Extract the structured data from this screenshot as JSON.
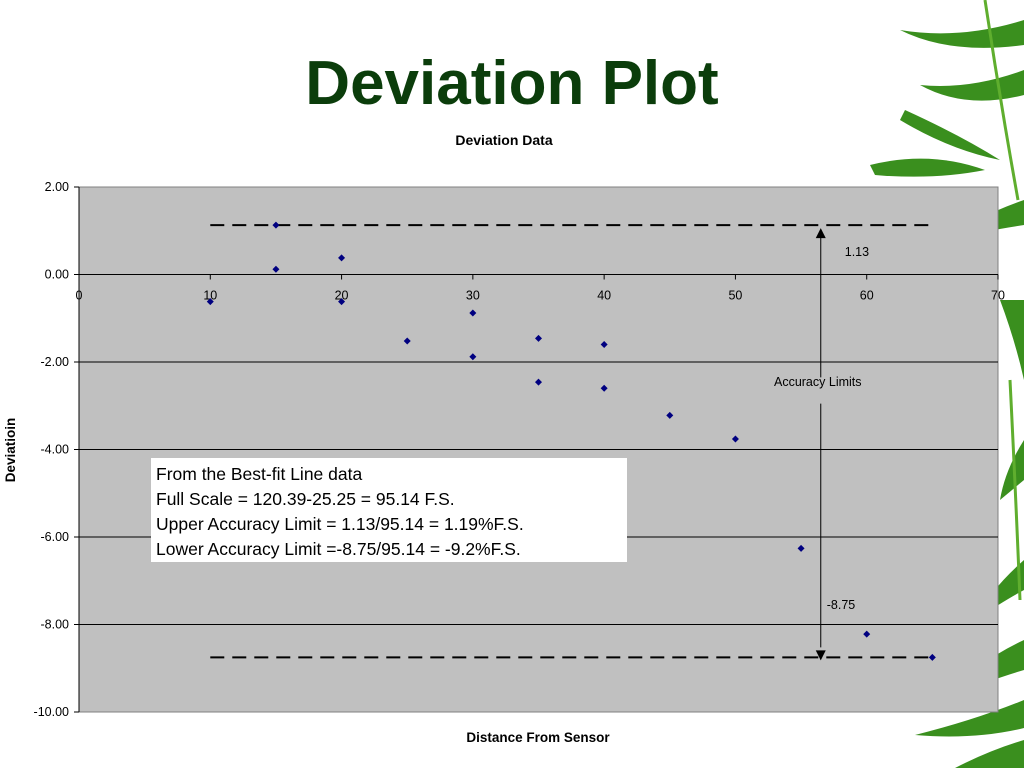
{
  "slide": {
    "title": "Deviation Plot",
    "note_lines": [
      "From the Best-fit Line data",
      "Full Scale = 120.39-25.25 = 95.14 F.S.",
      "Upper Accuracy Limit = 1.13/95.14 = 1.19%F.S.",
      "Lower Accuracy Limit =-8.75/95.14 = -9.2%F.S."
    ],
    "colors": {
      "title": "#0b3d0b",
      "plot_bg": "#c0c0c0",
      "marker": "#000080",
      "bamboo": "#3a8f1e"
    }
  },
  "chart_data": {
    "type": "scatter",
    "title": "Deviation Data",
    "xlabel": "Distance From Sensor",
    "ylabel": "Deviatioin",
    "xlim": [
      0,
      70
    ],
    "ylim": [
      -10,
      2
    ],
    "x_ticks": [
      0,
      10,
      20,
      30,
      40,
      50,
      60,
      70
    ],
    "y_ticks": [
      "2.00",
      "0.00",
      "-2.00",
      "-4.00",
      "-6.00",
      "-8.00",
      "-10.00"
    ],
    "grid": "horizontal",
    "points": [
      {
        "x": 10,
        "y": -0.62
      },
      {
        "x": 15,
        "y": 1.13
      },
      {
        "x": 15,
        "y": 0.12
      },
      {
        "x": 20,
        "y": 0.38
      },
      {
        "x": 20,
        "y": -0.62
      },
      {
        "x": 25,
        "y": -1.52
      },
      {
        "x": 30,
        "y": -0.88
      },
      {
        "x": 30,
        "y": -1.88
      },
      {
        "x": 35,
        "y": -1.46
      },
      {
        "x": 35,
        "y": -2.46
      },
      {
        "x": 40,
        "y": -1.6
      },
      {
        "x": 40,
        "y": -2.6
      },
      {
        "x": 45,
        "y": -3.22
      },
      {
        "x": 50,
        "y": -3.76
      },
      {
        "x": 55,
        "y": -6.26
      },
      {
        "x": 60,
        "y": -8.22
      },
      {
        "x": 65,
        "y": -8.75
      }
    ],
    "limit_lines": [
      {
        "name": "upper",
        "y": 1.13,
        "x_from": 10,
        "x_to": 65
      },
      {
        "name": "lower",
        "y": -8.75,
        "x_from": 10,
        "x_to": 65
      }
    ],
    "annotations": {
      "upper_value": "1.13",
      "lower_value": "-8.75",
      "range_label": "Accuracy Limits",
      "arrow_x": 56.5
    }
  }
}
